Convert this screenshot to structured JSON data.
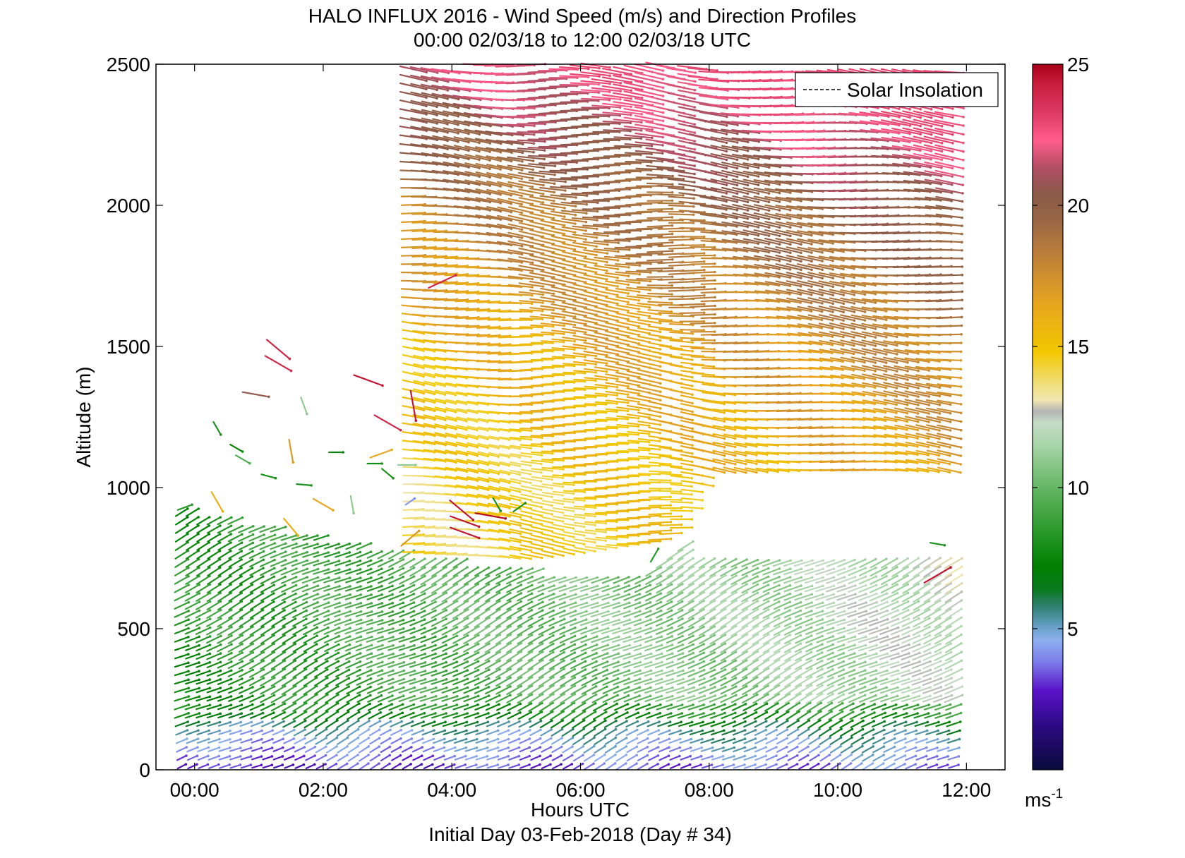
{
  "chart_data": {
    "type": "wind-barb",
    "title": "HALO INFLUX 2016 - Wind Speed (m/s) and Direction Profiles",
    "subtitle": "00:00 02/03/18 to 12:00 02/03/18  UTC",
    "xlabel": "Hours UTC",
    "ylabel": "Altitude (m)",
    "footer": "Initial Day 03-Feb-2018 (Day # 34)",
    "x_unit": "hours UTC",
    "xlim": [
      -0.6,
      12.6
    ],
    "ylim": [
      0,
      2500
    ],
    "x_ticks": [
      {
        "value": 0,
        "label": "00:00"
      },
      {
        "value": 2,
        "label": "02:00"
      },
      {
        "value": 4,
        "label": "04:00"
      },
      {
        "value": 6,
        "label": "06:00"
      },
      {
        "value": 8,
        "label": "08:00"
      },
      {
        "value": 10,
        "label": "10:00"
      },
      {
        "value": 12,
        "label": "12:00"
      }
    ],
    "y_ticks": [
      {
        "value": 0,
        "label": "0"
      },
      {
        "value": 500,
        "label": "500"
      },
      {
        "value": 1000,
        "label": "1000"
      },
      {
        "value": 1500,
        "label": "1500"
      },
      {
        "value": 2000,
        "label": "2000"
      },
      {
        "value": 2500,
        "label": "2500"
      }
    ],
    "legend": {
      "entries": [
        "Solar Insolation"
      ],
      "placement": "top-right",
      "line_style": "dashed"
    },
    "colorbar": {
      "range": [
        0,
        25
      ],
      "ticks": [
        {
          "value": 5,
          "label": "5"
        },
        {
          "value": 10,
          "label": "10"
        },
        {
          "value": 15,
          "label": "15"
        },
        {
          "value": 20,
          "label": "20"
        },
        {
          "value": 25,
          "label": "25"
        }
      ],
      "unit_label": "ms",
      "unit_exponent": "-1",
      "stops": [
        {
          "value": 0,
          "color": "#0a0a3c"
        },
        {
          "value": 1.5,
          "color": "#2a0a80"
        },
        {
          "value": 2.8,
          "color": "#5a12c8"
        },
        {
          "value": 3.8,
          "color": "#7a7ae8"
        },
        {
          "value": 4.6,
          "color": "#8fb0f0"
        },
        {
          "value": 5.2,
          "color": "#5c9ab8"
        },
        {
          "value": 5.8,
          "color": "#2e8070"
        },
        {
          "value": 6.4,
          "color": "#0a7a1e"
        },
        {
          "value": 7.2,
          "color": "#008000"
        },
        {
          "value": 8.5,
          "color": "#2c9a2c"
        },
        {
          "value": 10.0,
          "color": "#64b664"
        },
        {
          "value": 11.5,
          "color": "#a8d4a8"
        },
        {
          "value": 12.3,
          "color": "#c6dcc6"
        },
        {
          "value": 12.7,
          "color": "#b4b4b4"
        },
        {
          "value": 13.1,
          "color": "#f0e6b0"
        },
        {
          "value": 13.8,
          "color": "#f0dc6e"
        },
        {
          "value": 14.8,
          "color": "#f2c800"
        },
        {
          "value": 16.5,
          "color": "#e8a51e"
        },
        {
          "value": 18.3,
          "color": "#ba7e3a"
        },
        {
          "value": 19.6,
          "color": "#966446"
        },
        {
          "value": 20.4,
          "color": "#8c5a48"
        },
        {
          "value": 21.3,
          "color": "#b04e64"
        },
        {
          "value": 22.3,
          "color": "#ff5c8c"
        },
        {
          "value": 23.3,
          "color": "#dc3a64"
        },
        {
          "value": 24.3,
          "color": "#c81e3c"
        },
        {
          "value": 25.0,
          "color": "#a80018"
        }
      ]
    },
    "dense_regions": [
      {
        "name": "boundary-layer",
        "x_from": -0.2,
        "x_to": 11.8,
        "floor": 0,
        "top_profile": [
          [
            -0.2,
            930
          ],
          [
            0.4,
            895
          ],
          [
            1.2,
            860
          ],
          [
            2.1,
            820
          ],
          [
            3.0,
            780
          ],
          [
            4.0,
            740
          ],
          [
            5.0,
            710
          ],
          [
            6.0,
            690
          ],
          [
            7.0,
            700
          ],
          [
            7.6,
            800
          ],
          [
            7.8,
            760
          ],
          [
            9.0,
            740
          ],
          [
            11.1,
            760
          ],
          [
            11.8,
            750
          ]
        ],
        "speed_profile": [
          [
            0,
            2.5
          ],
          [
            150,
            5
          ],
          [
            200,
            7.5
          ],
          [
            500,
            8.2
          ],
          [
            900,
            8
          ]
        ],
        "speed_trend_per_hour": 0.35,
        "speed_cap": 15.5,
        "direction_deg": 245
      },
      {
        "name": "upper-westerlies",
        "x_from": 3.4,
        "x_to": 11.8,
        "floor_profile": [
          [
            3.4,
            760
          ],
          [
            5.0,
            740
          ],
          [
            7.2,
            800
          ],
          [
            7.6,
            850
          ],
          [
            8.0,
            1050
          ],
          [
            11.8,
            1050
          ]
        ],
        "speed_profile": [
          [
            1000,
            14
          ],
          [
            1500,
            15.5
          ],
          [
            2000,
            18
          ],
          [
            2500,
            22
          ]
        ],
        "speed_trend_per_hour": 0.3,
        "speed_cap": 23,
        "direction_deg": 275
      }
    ],
    "isolated_vectors": [
      {
        "t": -0.15,
        "z": 930,
        "speed": 8.5,
        "dir": 250
      },
      {
        "t": 0.35,
        "z": 950,
        "speed": 16,
        "dir": 330
      },
      {
        "t": 0.35,
        "z": 1210,
        "speed": 8.0,
        "dir": 330
      },
      {
        "t": 0.65,
        "z": 1140,
        "speed": 7.5,
        "dir": 300
      },
      {
        "t": 0.75,
        "z": 1100,
        "speed": 9.5,
        "dir": 300
      },
      {
        "t": 0.95,
        "z": 1330,
        "speed": 20.5,
        "dir": 280
      },
      {
        "t": 1.15,
        "z": 1040,
        "speed": 8.0,
        "dir": 285
      },
      {
        "t": 1.3,
        "z": 1490,
        "speed": 24,
        "dir": 310
      },
      {
        "t": 1.3,
        "z": 1440,
        "speed": 24,
        "dir": 300
      },
      {
        "t": 1.5,
        "z": 1130,
        "speed": 17,
        "dir": 350
      },
      {
        "t": 1.5,
        "z": 860,
        "speed": 16,
        "dir": 320
      },
      {
        "t": 1.7,
        "z": 1010,
        "speed": 8.0,
        "dir": 275
      },
      {
        "t": 1.7,
        "z": 1290,
        "speed": 11,
        "dir": 340
      },
      {
        "t": 2.0,
        "z": 940,
        "speed": 16.5,
        "dir": 300
      },
      {
        "t": 2.2,
        "z": 1125,
        "speed": 7.5,
        "dir": 270
      },
      {
        "t": 2.45,
        "z": 940,
        "speed": 11,
        "dir": 350
      },
      {
        "t": 2.7,
        "z": 1380,
        "speed": 24.5,
        "dir": 290
      },
      {
        "t": 2.8,
        "z": 1085,
        "speed": 7.8,
        "dir": 270
      },
      {
        "t": 2.9,
        "z": 1120,
        "speed": 16.5,
        "dir": 250
      },
      {
        "t": 3.0,
        "z": 1230,
        "speed": 24,
        "dir": 300
      },
      {
        "t": 3.0,
        "z": 1050,
        "speed": 8.0,
        "dir": 310
      },
      {
        "t": 3.3,
        "z": 1080,
        "speed": 11,
        "dir": 270
      },
      {
        "t": 3.35,
        "z": 950,
        "speed": 4.2,
        "dir": 235
      },
      {
        "t": 3.4,
        "z": 1290,
        "speed": 24.5,
        "dir": 350
      },
      {
        "t": 3.35,
        "z": 820,
        "speed": 17,
        "dir": 230
      },
      {
        "t": 3.85,
        "z": 1730,
        "speed": 24,
        "dir": 245
      },
      {
        "t": 4.15,
        "z": 920,
        "speed": 24.5,
        "dir": 310
      },
      {
        "t": 4.2,
        "z": 880,
        "speed": 24.5,
        "dir": 290
      },
      {
        "t": 4.2,
        "z": 840,
        "speed": 24.5,
        "dir": 290
      },
      {
        "t": 4.6,
        "z": 900,
        "speed": 24.8,
        "dir": 280
      },
      {
        "t": 4.7,
        "z": 940,
        "speed": 8.0,
        "dir": 330
      },
      {
        "t": 5.05,
        "z": 930,
        "speed": 8.0,
        "dir": 235
      },
      {
        "t": 7.15,
        "z": 760,
        "speed": 8.5,
        "dir": 210
      },
      {
        "t": 11.55,
        "z": 690,
        "speed": 24.5,
        "dir": 240
      },
      {
        "t": 11.55,
        "z": 800,
        "speed": 8.0,
        "dir": 280
      }
    ]
  }
}
